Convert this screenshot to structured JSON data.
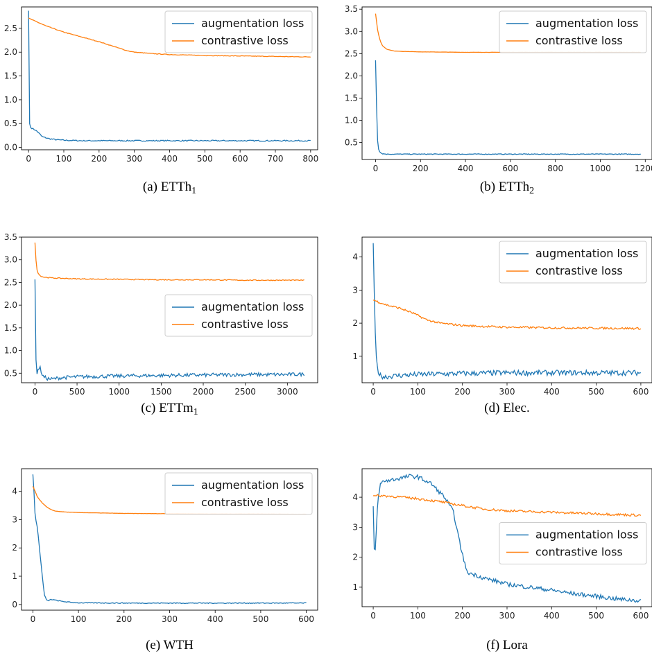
{
  "colors": {
    "augmentation": "#1f77b4",
    "contrastive": "#ff7f0e"
  },
  "chart_data": [
    {
      "type": "line",
      "caption": "(a) ETTh",
      "caption_sub": "1",
      "xlim": [
        -20,
        820
      ],
      "ylim": [
        -0.05,
        2.95
      ],
      "xticks": [
        0,
        100,
        200,
        300,
        400,
        500,
        600,
        700,
        800
      ],
      "yticks": [
        0.0,
        0.5,
        1.0,
        1.5,
        2.0,
        2.5
      ],
      "ytick_labels": [
        "0.0",
        "0.5",
        "1.0",
        "1.5",
        "2.0",
        "2.5"
      ],
      "legend_position": "top-right",
      "noise": {
        "augmentation": 0.012,
        "contrastive": 0.006
      },
      "series": [
        {
          "name": "augmentation loss",
          "x": [
            0,
            1,
            3,
            5,
            10,
            20,
            30,
            35,
            40,
            50,
            60,
            80,
            100,
            150,
            200,
            300,
            400,
            500,
            600,
            700,
            800
          ],
          "y": [
            2.87,
            1.5,
            0.5,
            0.42,
            0.4,
            0.36,
            0.3,
            0.25,
            0.22,
            0.2,
            0.18,
            0.16,
            0.15,
            0.14,
            0.14,
            0.14,
            0.14,
            0.14,
            0.14,
            0.14,
            0.14
          ]
        },
        {
          "name": "contrastive loss",
          "x": [
            0,
            10,
            50,
            100,
            150,
            200,
            250,
            280,
            300,
            350,
            400,
            500,
            600,
            700,
            800
          ],
          "y": [
            2.72,
            2.68,
            2.55,
            2.42,
            2.32,
            2.22,
            2.1,
            2.03,
            2.0,
            1.97,
            1.95,
            1.93,
            1.92,
            1.91,
            1.9
          ]
        }
      ]
    },
    {
      "type": "line",
      "caption": "(b) ETTh",
      "caption_sub": "2",
      "xlim": [
        -60,
        1230
      ],
      "ylim": [
        0.12,
        3.55
      ],
      "xticks": [
        0,
        200,
        400,
        600,
        800,
        1000,
        1200
      ],
      "yticks": [
        0.5,
        1.0,
        1.5,
        2.0,
        2.5,
        3.0,
        3.5
      ],
      "ytick_labels": [
        "0.5",
        "1.0",
        "1.5",
        "2.0",
        "2.5",
        "3.0",
        "3.5"
      ],
      "legend_position": "top-right",
      "noise": {
        "augmentation": 0.008,
        "contrastive": 0.002
      },
      "series": [
        {
          "name": "augmentation loss",
          "x": [
            0,
            5,
            10,
            20,
            30,
            50,
            100,
            200,
            400,
            600,
            800,
            1000,
            1180
          ],
          "y": [
            2.35,
            1.2,
            0.4,
            0.28,
            0.25,
            0.24,
            0.24,
            0.24,
            0.24,
            0.24,
            0.24,
            0.24,
            0.24
          ]
        },
        {
          "name": "contrastive loss",
          "x": [
            0,
            10,
            20,
            30,
            50,
            80,
            120,
            200,
            400,
            600,
            800,
            1000,
            1180
          ],
          "y": [
            3.4,
            3.0,
            2.8,
            2.68,
            2.6,
            2.56,
            2.55,
            2.54,
            2.53,
            2.53,
            2.53,
            2.53,
            2.53
          ]
        }
      ]
    },
    {
      "type": "line",
      "caption": "(c) ETTm",
      "caption_sub": "1",
      "xlim": [
        -160,
        3360
      ],
      "ylim": [
        0.29,
        3.5
      ],
      "xticks": [
        0,
        500,
        1000,
        1500,
        2000,
        2500,
        3000
      ],
      "yticks": [
        0.5,
        1.0,
        1.5,
        2.0,
        2.5,
        3.0,
        3.5
      ],
      "ytick_labels": [
        "0.5",
        "1.0",
        "1.5",
        "2.0",
        "2.5",
        "3.0",
        "3.5"
      ],
      "legend_position": "center-right",
      "noise": {
        "augmentation": 0.04,
        "contrastive": 0.01
      },
      "series": [
        {
          "name": "augmentation loss",
          "x": [
            0,
            10,
            20,
            40,
            60,
            80,
            100,
            150,
            200,
            300,
            500,
            1000,
            1500,
            2000,
            2500,
            3000,
            3200
          ],
          "y": [
            2.57,
            0.9,
            0.45,
            0.6,
            0.62,
            0.5,
            0.42,
            0.38,
            0.37,
            0.4,
            0.42,
            0.44,
            0.45,
            0.46,
            0.47,
            0.47,
            0.48
          ]
        },
        {
          "name": "contrastive loss",
          "x": [
            0,
            10,
            20,
            40,
            60,
            100,
            200,
            500,
            1000,
            1500,
            2000,
            2500,
            3000,
            3200
          ],
          "y": [
            3.38,
            3.05,
            2.8,
            2.7,
            2.65,
            2.62,
            2.6,
            2.58,
            2.57,
            2.56,
            2.56,
            2.55,
            2.55,
            2.55
          ]
        }
      ]
    },
    {
      "type": "line",
      "caption": "(d) Elec.",
      "caption_sub": "",
      "xlim": [
        -25,
        625
      ],
      "ylim": [
        0.2,
        4.6
      ],
      "xticks": [
        0,
        100,
        200,
        300,
        400,
        500,
        600
      ],
      "yticks": [
        1,
        2,
        3,
        4
      ],
      "ytick_labels": [
        "1",
        "2",
        "3",
        "4"
      ],
      "legend_position": "top-right",
      "noise": {
        "augmentation": 0.08,
        "contrastive": 0.03
      },
      "series": [
        {
          "name": "augmentation loss",
          "x": [
            0,
            3,
            6,
            10,
            15,
            25,
            40,
            60,
            100,
            200,
            300,
            400,
            500,
            600
          ],
          "y": [
            4.42,
            2.5,
            1.05,
            0.6,
            0.42,
            0.38,
            0.4,
            0.42,
            0.45,
            0.48,
            0.5,
            0.5,
            0.5,
            0.5
          ]
        },
        {
          "name": "contrastive loss",
          "x": [
            0,
            10,
            30,
            60,
            90,
            120,
            150,
            200,
            250,
            300,
            400,
            500,
            600
          ],
          "y": [
            2.7,
            2.65,
            2.55,
            2.45,
            2.3,
            2.1,
            2.0,
            1.93,
            1.9,
            1.88,
            1.86,
            1.85,
            1.84
          ]
        }
      ]
    },
    {
      "type": "line",
      "caption": "(e) WTH",
      "caption_sub": "",
      "xlim": [
        -25,
        625
      ],
      "ylim": [
        -0.2,
        4.8
      ],
      "xticks": [
        0,
        100,
        200,
        300,
        400,
        500,
        600
      ],
      "yticks": [
        0,
        1,
        2,
        3,
        4
      ],
      "ytick_labels": [
        "0",
        "1",
        "2",
        "3",
        "4"
      ],
      "legend_position": "top-right",
      "noise": {
        "augmentation": 0.015,
        "contrastive": 0.004
      },
      "series": [
        {
          "name": "augmentation loss",
          "x": [
            0,
            2,
            5,
            10,
            15,
            20,
            25,
            30,
            35,
            40,
            50,
            60,
            80,
            100,
            200,
            300,
            400,
            500,
            600
          ],
          "y": [
            4.6,
            4.1,
            3.1,
            2.7,
            1.9,
            1.1,
            0.35,
            0.15,
            0.14,
            0.18,
            0.15,
            0.12,
            0.08,
            0.06,
            0.05,
            0.05,
            0.05,
            0.05,
            0.05
          ]
        },
        {
          "name": "contrastive loss",
          "x": [
            0,
            5,
            10,
            20,
            30,
            40,
            50,
            70,
            100,
            200,
            300,
            400,
            500,
            600
          ],
          "y": [
            4.18,
            4.0,
            3.8,
            3.6,
            3.45,
            3.35,
            3.3,
            3.27,
            3.25,
            3.22,
            3.21,
            3.2,
            3.2,
            3.19
          ]
        }
      ]
    },
    {
      "type": "line",
      "caption": "(f) Lora",
      "caption_sub": "",
      "xlim": [
        -25,
        625
      ],
      "ylim": [
        0.35,
        4.95
      ],
      "xticks": [
        0,
        100,
        200,
        300,
        400,
        500,
        600
      ],
      "yticks": [
        1,
        2,
        3,
        4
      ],
      "ytick_labels": [
        "1",
        "2",
        "3",
        "4"
      ],
      "legend_position": "center-right",
      "noise": {
        "augmentation": 0.07,
        "contrastive": 0.04
      },
      "series": [
        {
          "name": "augmentation loss",
          "x": [
            0,
            3,
            6,
            10,
            15,
            20,
            30,
            50,
            80,
            100,
            130,
            160,
            180,
            195,
            205,
            210,
            220,
            250,
            300,
            350,
            400,
            450,
            500,
            550,
            600
          ],
          "y": [
            3.7,
            1.85,
            2.6,
            3.8,
            4.4,
            4.5,
            4.55,
            4.6,
            4.7,
            4.68,
            4.45,
            4.0,
            3.5,
            2.4,
            1.8,
            1.5,
            1.45,
            1.3,
            1.1,
            1.0,
            0.9,
            0.78,
            0.7,
            0.6,
            0.55
          ]
        },
        {
          "name": "contrastive loss",
          "x": [
            0,
            20,
            50,
            100,
            150,
            200,
            250,
            300,
            350,
            400,
            450,
            500,
            550,
            600
          ],
          "y": [
            4.05,
            4.05,
            4.02,
            3.95,
            3.85,
            3.72,
            3.6,
            3.55,
            3.52,
            3.5,
            3.47,
            3.45,
            3.42,
            3.4
          ]
        }
      ]
    }
  ]
}
